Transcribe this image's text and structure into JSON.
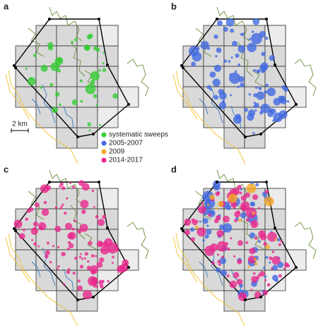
{
  "panels": [
    "a",
    "b",
    "c",
    "d"
  ],
  "scale_bar": "2 km",
  "legend": [
    {
      "label": "systematic sweeps",
      "color": "#33cc33"
    },
    {
      "label": "2005-2007",
      "color": "#4169e1"
    },
    {
      "label": "2009",
      "color": "#f5a623"
    },
    {
      "label": "2014-2017",
      "color": "#e8288c"
    }
  ]
}
